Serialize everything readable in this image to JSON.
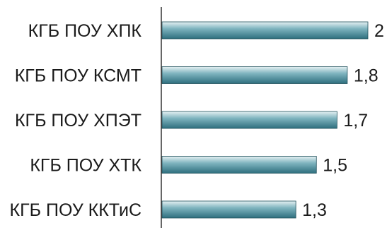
{
  "chart_data": {
    "type": "bar",
    "orientation": "horizontal",
    "categories": [
      "КГБ ПОУ ХПК",
      "КГБ ПОУ КСМТ",
      "КГБ ПОУ ХПЭТ",
      "КГБ ПОУ ХТК",
      "КГБ ПОУ ККТиС"
    ],
    "values": [
      2,
      1.8,
      1.7,
      1.5,
      1.3
    ],
    "value_labels": [
      "2",
      "1,8",
      "1,7",
      "1,5",
      "1,3"
    ],
    "xlim": [
      0,
      2
    ],
    "grid": false,
    "legend": "none"
  },
  "colors": {
    "bar_top": "#e6f1f3",
    "bar_mid": "#7fb4bf",
    "bar_bottom": "#2e6f7e",
    "bar_edge": "#1f4f5a",
    "axis": "#333333",
    "text": "#1a1a1a"
  }
}
